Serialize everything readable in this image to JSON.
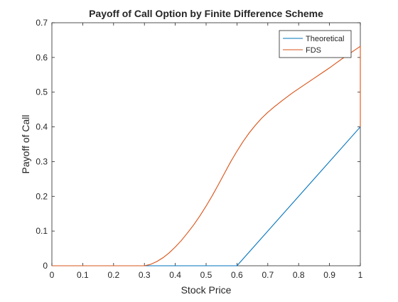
{
  "chart_data": {
    "type": "line",
    "title": "Payoff of Call Option by Finite Difference Scheme",
    "xlabel": "Stock Price",
    "ylabel": "Payoff of Call",
    "xlim": [
      0,
      1
    ],
    "ylim": [
      0,
      0.7
    ],
    "xticks": [
      0,
      0.1,
      0.2,
      0.3,
      0.4,
      0.5,
      0.6,
      0.7,
      0.8,
      0.9,
      1
    ],
    "xtick_labels": [
      "0",
      "0.1",
      "0.2",
      "0.3",
      "0.4",
      "0.5",
      "0.6",
      "0.7",
      "0.8",
      "0.9",
      "1"
    ],
    "yticks": [
      0,
      0.1,
      0.2,
      0.3,
      0.4,
      0.5,
      0.6,
      0.7
    ],
    "ytick_labels": [
      "0",
      "0.1",
      "0.2",
      "0.3",
      "0.4",
      "0.5",
      "0.6",
      "0.7"
    ],
    "grid": false,
    "legend_position": "top-right",
    "series": [
      {
        "name": "Theoretical",
        "color": "#0072BD",
        "x": [
          0,
          0.6,
          1.0
        ],
        "y": [
          0,
          0,
          0.4
        ]
      },
      {
        "name": "FDS",
        "color": "#D95319",
        "x": [
          0,
          0.3,
          0.32,
          0.34,
          0.36,
          0.38,
          0.4,
          0.42,
          0.44,
          0.46,
          0.48,
          0.5,
          0.52,
          0.54,
          0.56,
          0.58,
          0.6,
          0.62,
          0.64,
          0.66,
          0.68,
          0.7,
          0.72,
          0.75,
          0.78,
          0.8,
          0.82,
          0.85,
          0.88,
          0.9,
          0.92,
          0.95,
          0.98,
          1.0,
          1.0
        ],
        "y": [
          0,
          0,
          0.004,
          0.012,
          0.023,
          0.037,
          0.054,
          0.073,
          0.095,
          0.118,
          0.144,
          0.172,
          0.202,
          0.234,
          0.267,
          0.3,
          0.33,
          0.358,
          0.383,
          0.405,
          0.425,
          0.442,
          0.457,
          0.478,
          0.498,
          0.51,
          0.522,
          0.54,
          0.558,
          0.57,
          0.583,
          0.602,
          0.62,
          0.632,
          0.4
        ]
      }
    ]
  }
}
